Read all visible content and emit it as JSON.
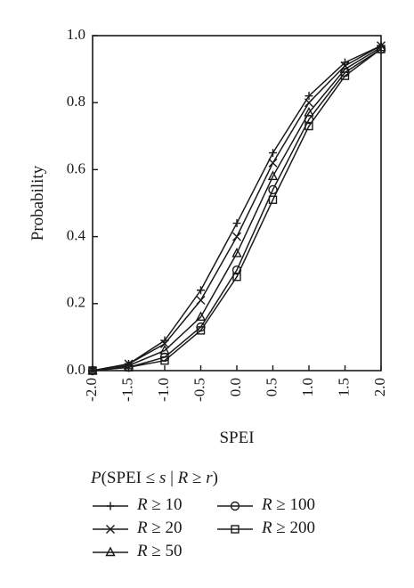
{
  "chart_data": {
    "type": "line",
    "xlabel": "SPEI",
    "ylabel": "Probability",
    "xlim": [
      -2.0,
      2.0
    ],
    "ylim": [
      0.0,
      1.0
    ],
    "xticks": [
      "-2.0",
      "-1.5",
      "-1.0",
      "-0.5",
      "0.0",
      "0.5",
      "1.0",
      "1.5",
      "2.0"
    ],
    "yticks": [
      "0.0",
      "0.2",
      "0.4",
      "0.6",
      "0.8",
      "1.0"
    ],
    "grid": false,
    "legend_position": "bottom",
    "legend_title": "P(SPEI ≤ s | R ≥ r)",
    "x": [
      -2.0,
      -1.5,
      -1.0,
      -0.5,
      0.0,
      0.5,
      1.0,
      1.5,
      2.0
    ],
    "series": [
      {
        "name": "R ≥ 10",
        "marker": "plus",
        "values": [
          0.0,
          0.02,
          0.09,
          0.24,
          0.44,
          0.65,
          0.82,
          0.92,
          0.97
        ]
      },
      {
        "name": "R ≥ 20",
        "marker": "x",
        "values": [
          0.0,
          0.02,
          0.08,
          0.21,
          0.4,
          0.62,
          0.8,
          0.91,
          0.97
        ]
      },
      {
        "name": "R ≥ 50",
        "marker": "triangle",
        "values": [
          0.0,
          0.015,
          0.06,
          0.16,
          0.35,
          0.58,
          0.77,
          0.9,
          0.965
        ]
      },
      {
        "name": "R ≥ 100",
        "marker": "circle",
        "values": [
          0.0,
          0.01,
          0.04,
          0.13,
          0.3,
          0.54,
          0.75,
          0.89,
          0.96
        ]
      },
      {
        "name": "R ≥ 200",
        "marker": "square",
        "values": [
          0.0,
          0.01,
          0.03,
          0.12,
          0.28,
          0.51,
          0.73,
          0.88,
          0.96
        ]
      }
    ]
  }
}
